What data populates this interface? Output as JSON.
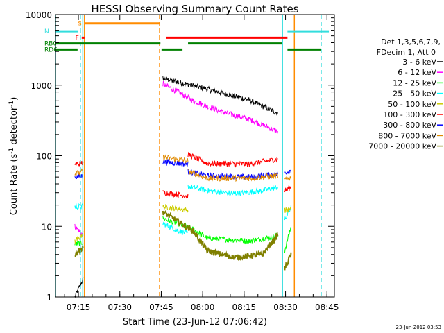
{
  "chart_data": {
    "type": "line",
    "title": "HESSI Observing Summary Count Rates",
    "xlabel": "Start Time (23-Jun-12 07:06:42)",
    "ylabel_main": "Count Rate (s",
    "ylabel_sup1": "-1",
    "ylabel_mid": " detector",
    "ylabel_sup2": "-1",
    "ylabel_end": ")",
    "xlim_minutes": [
      0,
      101
    ],
    "ylim": [
      1,
      10000
    ],
    "y_scale": "log",
    "x_ticks": [
      {
        "label": "07:15",
        "minutes": 8.3
      },
      {
        "label": "07:30",
        "minutes": 23.3
      },
      {
        "label": "07:45",
        "minutes": 38.3
      },
      {
        "label": "08:00",
        "minutes": 53.3
      },
      {
        "label": "08:15",
        "minutes": 68.3
      },
      {
        "label": "08:30",
        "minutes": 83.3
      },
      {
        "label": "08:45",
        "minutes": 98.3
      }
    ],
    "y_ticks": [
      {
        "label": "1",
        "value": 1
      },
      {
        "label": "10",
        "value": 10
      },
      {
        "label": "100",
        "value": 100
      },
      {
        "label": "1000",
        "value": 1000
      },
      {
        "label": "10000",
        "value": 10000
      }
    ],
    "legend": {
      "placement": "right",
      "header1": "Det 1,3,5,6,7,9,",
      "header2": "FDecim 1, Att 0"
    },
    "series": [
      {
        "name": "3 - 6 keV",
        "color": "#000000",
        "segments": [
          [
            [
              7,
              1
            ],
            [
              10,
              1.8
            ]
          ],
          [
            [
              38.9,
              1250
            ],
            [
              55,
              880
            ],
            [
              70,
              620
            ],
            [
              80.5,
              400
            ]
          ]
        ]
      },
      {
        "name": "6 - 12 keV",
        "color": "#ff00ff",
        "segments": [
          [
            [
              7,
              10
            ],
            [
              10,
              7.5
            ]
          ],
          [
            [
              38.9,
              1050
            ],
            [
              50,
              600
            ],
            [
              60,
              420
            ],
            [
              70,
              330
            ],
            [
              80.5,
              220
            ]
          ]
        ]
      },
      {
        "name": "12 - 25 keV",
        "color": "#00ff00",
        "segments": [
          [
            [
              7,
              5.5
            ],
            [
              10,
              6
            ]
          ],
          [
            [
              38.9,
              13
            ],
            [
              50,
              9
            ],
            [
              55,
              6.8
            ],
            [
              70,
              6.2
            ],
            [
              78,
              7
            ],
            [
              80.5,
              7.5
            ]
          ],
          [
            [
              83,
              4.5
            ],
            [
              85.3,
              10
            ]
          ]
        ]
      },
      {
        "name": "25 - 50 keV",
        "color": "#00ffff",
        "segments": [
          [
            [
              7,
              19
            ],
            [
              10,
              19
            ]
          ],
          [
            [
              38.9,
              11
            ],
            [
              44,
              8.8
            ],
            [
              48,
              7.8
            ]
          ],
          [
            [
              48,
              37
            ],
            [
              55,
              32
            ],
            [
              65,
              29
            ],
            [
              75,
              32
            ],
            [
              80.5,
              36
            ]
          ],
          [
            [
              83,
              12
            ],
            [
              85.3,
              19
            ]
          ]
        ]
      },
      {
        "name": "50 - 100 keV",
        "color": "#cccc00",
        "segments": [
          [
            [
              7,
              6
            ],
            [
              10,
              8
            ]
          ],
          [
            [
              38.9,
              19
            ],
            [
              48,
              17
            ]
          ],
          [
            [
              83,
              17
            ],
            [
              85.3,
              17
            ]
          ]
        ]
      },
      {
        "name": "100 - 300 keV",
        "color": "#ff0000",
        "segments": [
          [
            [
              7,
              75
            ],
            [
              10,
              80
            ]
          ],
          [
            [
              38.9,
              30
            ],
            [
              48,
              27
            ]
          ],
          [
            [
              48,
              105
            ],
            [
              55,
              78
            ],
            [
              70,
              76
            ],
            [
              80.5,
              90
            ]
          ],
          [
            [
              83,
              32
            ],
            [
              85.3,
              36
            ]
          ]
        ]
      },
      {
        "name": "300 - 800 keV",
        "color": "#0000ff",
        "segments": [
          [
            [
              7,
              50
            ],
            [
              10,
              52
            ]
          ],
          [
            [
              38.9,
              82
            ],
            [
              48,
              76
            ]
          ],
          [
            [
              48,
              60
            ],
            [
              55,
              52
            ],
            [
              70,
              50
            ],
            [
              80.5,
              55
            ]
          ],
          [
            [
              83,
              58
            ],
            [
              85.3,
              62
            ]
          ]
        ]
      },
      {
        "name": "800 - 7000 keV",
        "color": "#e08a00",
        "segments": [
          [
            [
              7,
              55
            ],
            [
              10,
              60
            ]
          ],
          [
            [
              38.9,
              95
            ],
            [
              48,
              85
            ]
          ],
          [
            [
              48,
              60
            ],
            [
              55,
              48
            ],
            [
              70,
              48
            ],
            [
              80.5,
              52
            ]
          ],
          [
            [
              83,
              45
            ],
            [
              85.3,
              50
            ]
          ]
        ]
      },
      {
        "name": "7000 - 20000 keV",
        "color": "#808000",
        "segments": [
          [
            [
              7,
              4
            ],
            [
              10,
              5
            ]
          ],
          [
            [
              38.9,
              16
            ],
            [
              44,
              12
            ],
            [
              50,
              8.5
            ],
            [
              55,
              4.5
            ],
            [
              65,
              3.6
            ],
            [
              75,
              4
            ],
            [
              80.5,
              7.5
            ]
          ],
          [
            [
              83,
              2.5
            ],
            [
              85.3,
              4
            ]
          ]
        ]
      }
    ],
    "flags": [
      {
        "label": "S",
        "color": "#ff8c00",
        "y": 7500,
        "segments": [
          [
            10.5,
            37.7
          ]
        ]
      },
      {
        "label": "N",
        "color": "#33dddd",
        "y": 5800,
        "segments": [
          [
            0,
            8.3
          ],
          [
            84,
            99
          ]
        ]
      },
      {
        "label": "F",
        "color": "#ff0000",
        "y": 4700,
        "segments": [
          [
            9.5,
            10.5
          ],
          [
            40,
            84
          ]
        ]
      },
      {
        "label": "RB0",
        "color": "#008000",
        "y": 3900,
        "segments": [
          [
            0,
            38
          ],
          [
            48,
            82
          ]
        ]
      },
      {
        "label": "RD6",
        "color": "#008000",
        "y": 3200,
        "segments": [
          [
            0,
            8
          ],
          [
            38.4,
            46
          ],
          [
            84,
            96
          ]
        ]
      }
    ],
    "vlines": [
      {
        "color": "#33dddd",
        "minutes": 0.0,
        "dash": false
      },
      {
        "color": "#33dddd",
        "minutes": 9.0,
        "dash": true
      },
      {
        "color": "#33dddd",
        "minutes": 9.9,
        "dash": false
      },
      {
        "color": "#ff8c00",
        "minutes": 10.5,
        "dash": false
      },
      {
        "color": "#ff8c00",
        "minutes": 37.7,
        "dash": true
      },
      {
        "color": "#33dddd",
        "minutes": 82.2,
        "dash": false
      },
      {
        "color": "#ff8c00",
        "minutes": 86.5,
        "dash": false
      },
      {
        "color": "#33dddd",
        "minutes": 96.2,
        "dash": true
      }
    ]
  },
  "footer": {
    "timestamp": "23-Jun-2012 03:53"
  }
}
